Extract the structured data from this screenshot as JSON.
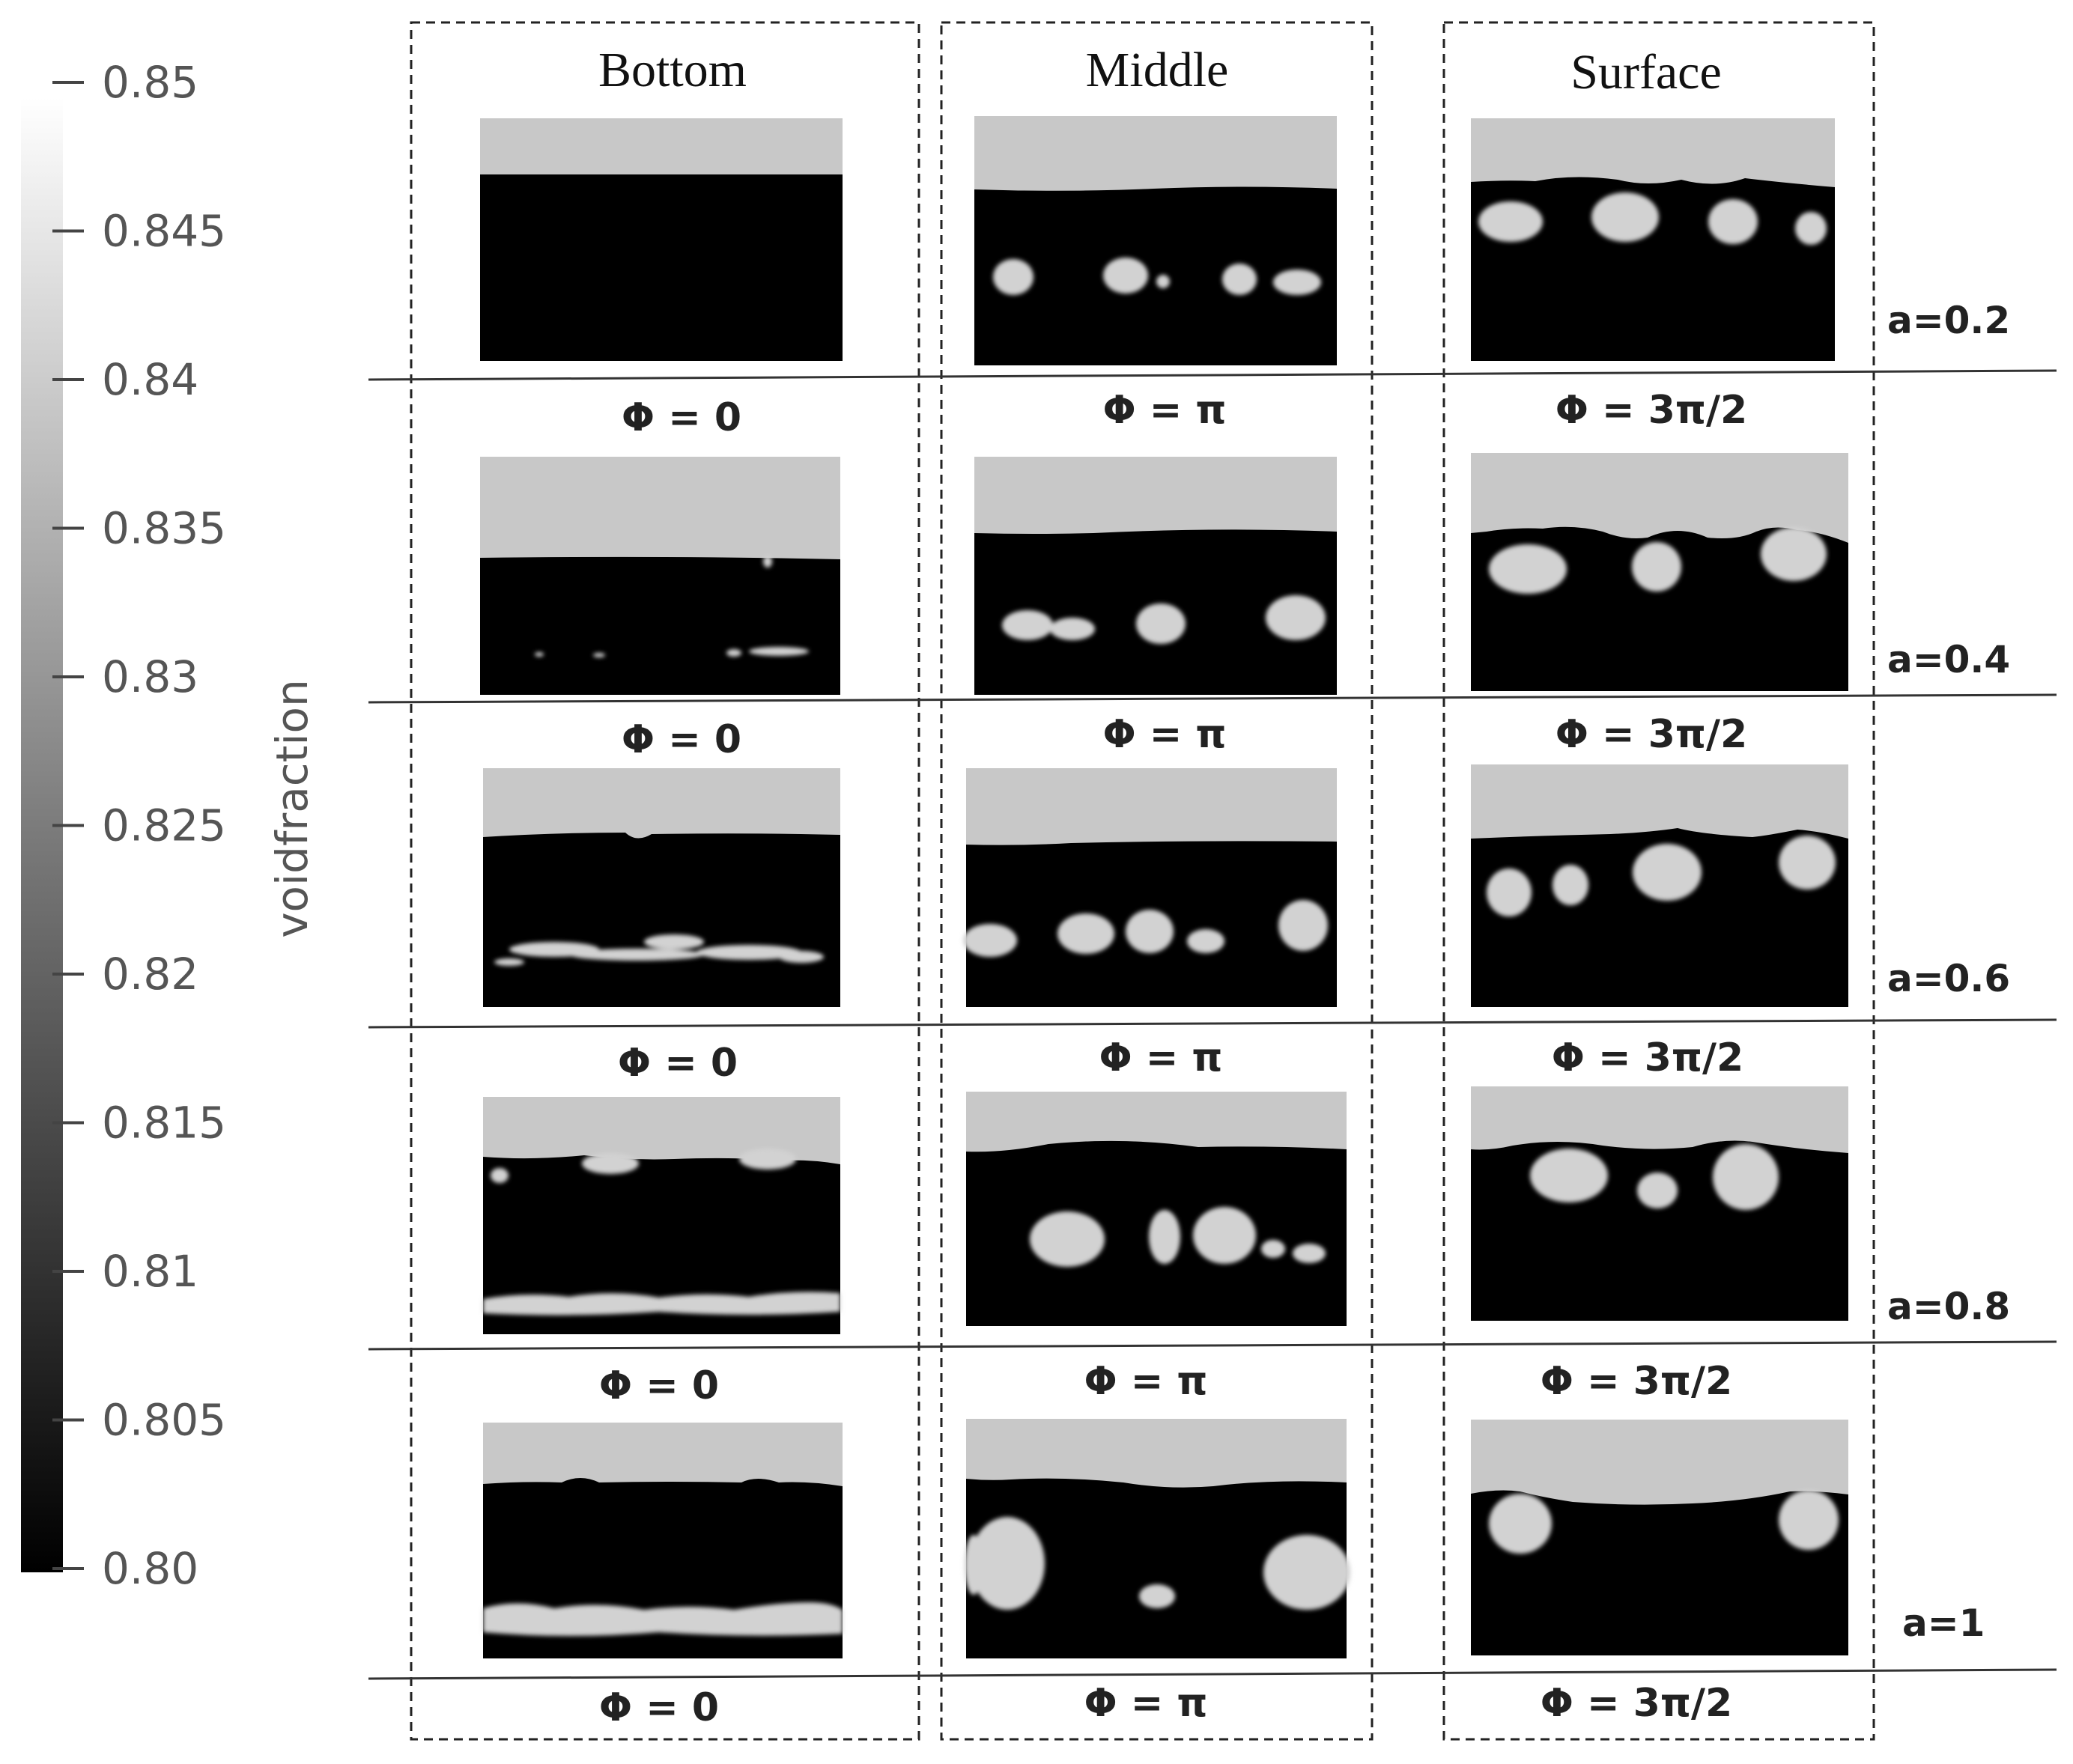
{
  "colorbar": {
    "label": "voidfraction",
    "ticks": [
      "0.85",
      "0.845",
      "0.84",
      "0.835",
      "0.83",
      "0.825",
      "0.82",
      "0.815",
      "0.81",
      "0.805",
      "0.80"
    ]
  },
  "columns": [
    {
      "title": "Bottom"
    },
    {
      "title": "Middle"
    },
    {
      "title": "Surface"
    }
  ],
  "rows": [
    {
      "a_label": "a=0.2",
      "phi": [
        "Φ = 0",
        "Φ = π",
        "Φ = 3π/2"
      ]
    },
    {
      "a_label": "a=0.4",
      "phi": [
        "Φ = 0",
        "Φ = π",
        "Φ = 3π/2"
      ]
    },
    {
      "a_label": "a=0.6",
      "phi": [
        "Φ = 0",
        "Φ = π",
        "Φ = 3π/2"
      ]
    },
    {
      "a_label": "a=0.8",
      "phi": [
        "Φ = 0",
        "Φ = π",
        "Φ = 3π/2"
      ]
    },
    {
      "a_label": "a=1",
      "phi": [
        "Φ = 0",
        "Φ = π",
        "Φ = 3π/2"
      ]
    }
  ],
  "colors": {
    "liquid": "#000000",
    "air": "#c8c8c8",
    "bubble": "#d2d2d2"
  }
}
